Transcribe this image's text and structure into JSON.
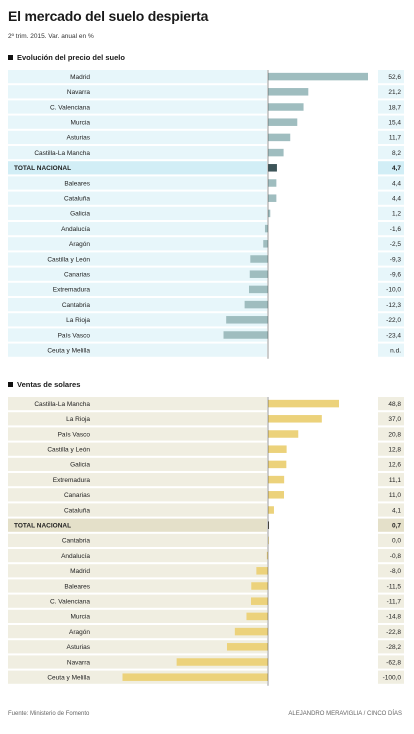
{
  "title": "El mercado del suelo despierta",
  "subtitle": "2º trim. 2015. Var. anual en %",
  "source": "Fuente: Ministerio de Fomento",
  "credit": "ALEJANDRO MERAVIGLIA / CINCO DÍAS",
  "colors": {
    "panel1_row": "#e7f6fa",
    "panel1_total_row": "#d2eef6",
    "panel1_bar": "#9fbdbf",
    "panel1_total_bar": "#3d5458",
    "panel2_row": "#f0eee1",
    "panel2_total_row": "#e4e0c9",
    "panel2_bar": "#ecd27b",
    "panel2_total_bar": "#3c3a32"
  },
  "chart_data": [
    {
      "type": "bar",
      "orientation": "horizontal",
      "title": "Evolución del precio del suelo",
      "highlight": "TOTAL NACIONAL",
      "categories": [
        "Madrid",
        "Navarra",
        "C. Valenciana",
        "Murcia",
        "Asturias",
        "Castilla-La Mancha",
        "TOTAL NACIONAL",
        "Baleares",
        "Cataluña",
        "Galicia",
        "Andalucía",
        "Aragón",
        "Castilla y León",
        "Canarias",
        "Extremadura",
        "Cantabria",
        "La Rioja",
        "País Vasco",
        "Ceuta y Melilla"
      ],
      "values": [
        52.6,
        21.2,
        18.7,
        15.4,
        11.7,
        8.2,
        4.7,
        4.4,
        4.4,
        1.2,
        -1.6,
        -2.5,
        -9.3,
        -9.6,
        -10.0,
        -12.3,
        -22.0,
        -23.4,
        null
      ],
      "labels": [
        "52,6",
        "21,2",
        "18,7",
        "15,4",
        "11,7",
        "8,2",
        "4,7",
        "4,4",
        "4,4",
        "1,2",
        "-1,6",
        "-2,5",
        "-9,3",
        "-9,6",
        "-10,0",
        "-12,3",
        "-22,0",
        "-23,4",
        "n.d."
      ],
      "xlim": [
        -25,
        55
      ]
    },
    {
      "type": "bar",
      "orientation": "horizontal",
      "title": "Ventas de solares",
      "highlight": "TOTAL NACIONAL",
      "categories": [
        "Castilla-La Mancha",
        "La Rioja",
        "País Vasco",
        "Castilla y León",
        "Galicia",
        "Extremadura",
        "Canarias",
        "Cataluña",
        "TOTAL NACIONAL",
        "Cantabria",
        "Andalucía",
        "Madrid",
        "Baleares",
        "C. Valenciana",
        "Murcia",
        "Aragón",
        "Asturias",
        "Navarra",
        "Ceuta y Melilla"
      ],
      "values": [
        48.8,
        37.0,
        20.8,
        12.8,
        12.6,
        11.1,
        11.0,
        4.1,
        0.7,
        0.0,
        -0.8,
        -8.0,
        -11.5,
        -11.7,
        -14.8,
        -22.8,
        -28.2,
        -62.8,
        -100.0
      ],
      "labels": [
        "48,8",
        "37,0",
        "20,8",
        "12,8",
        "12,6",
        "11,1",
        "11,0",
        "4,1",
        "0,7",
        "0,0",
        "-0,8",
        "-8,0",
        "-11,5",
        "-11,7",
        "-14,8",
        "-22,8",
        "-28,2",
        "-62,8",
        "-100,0"
      ],
      "xlim": [
        -100,
        50
      ]
    }
  ]
}
